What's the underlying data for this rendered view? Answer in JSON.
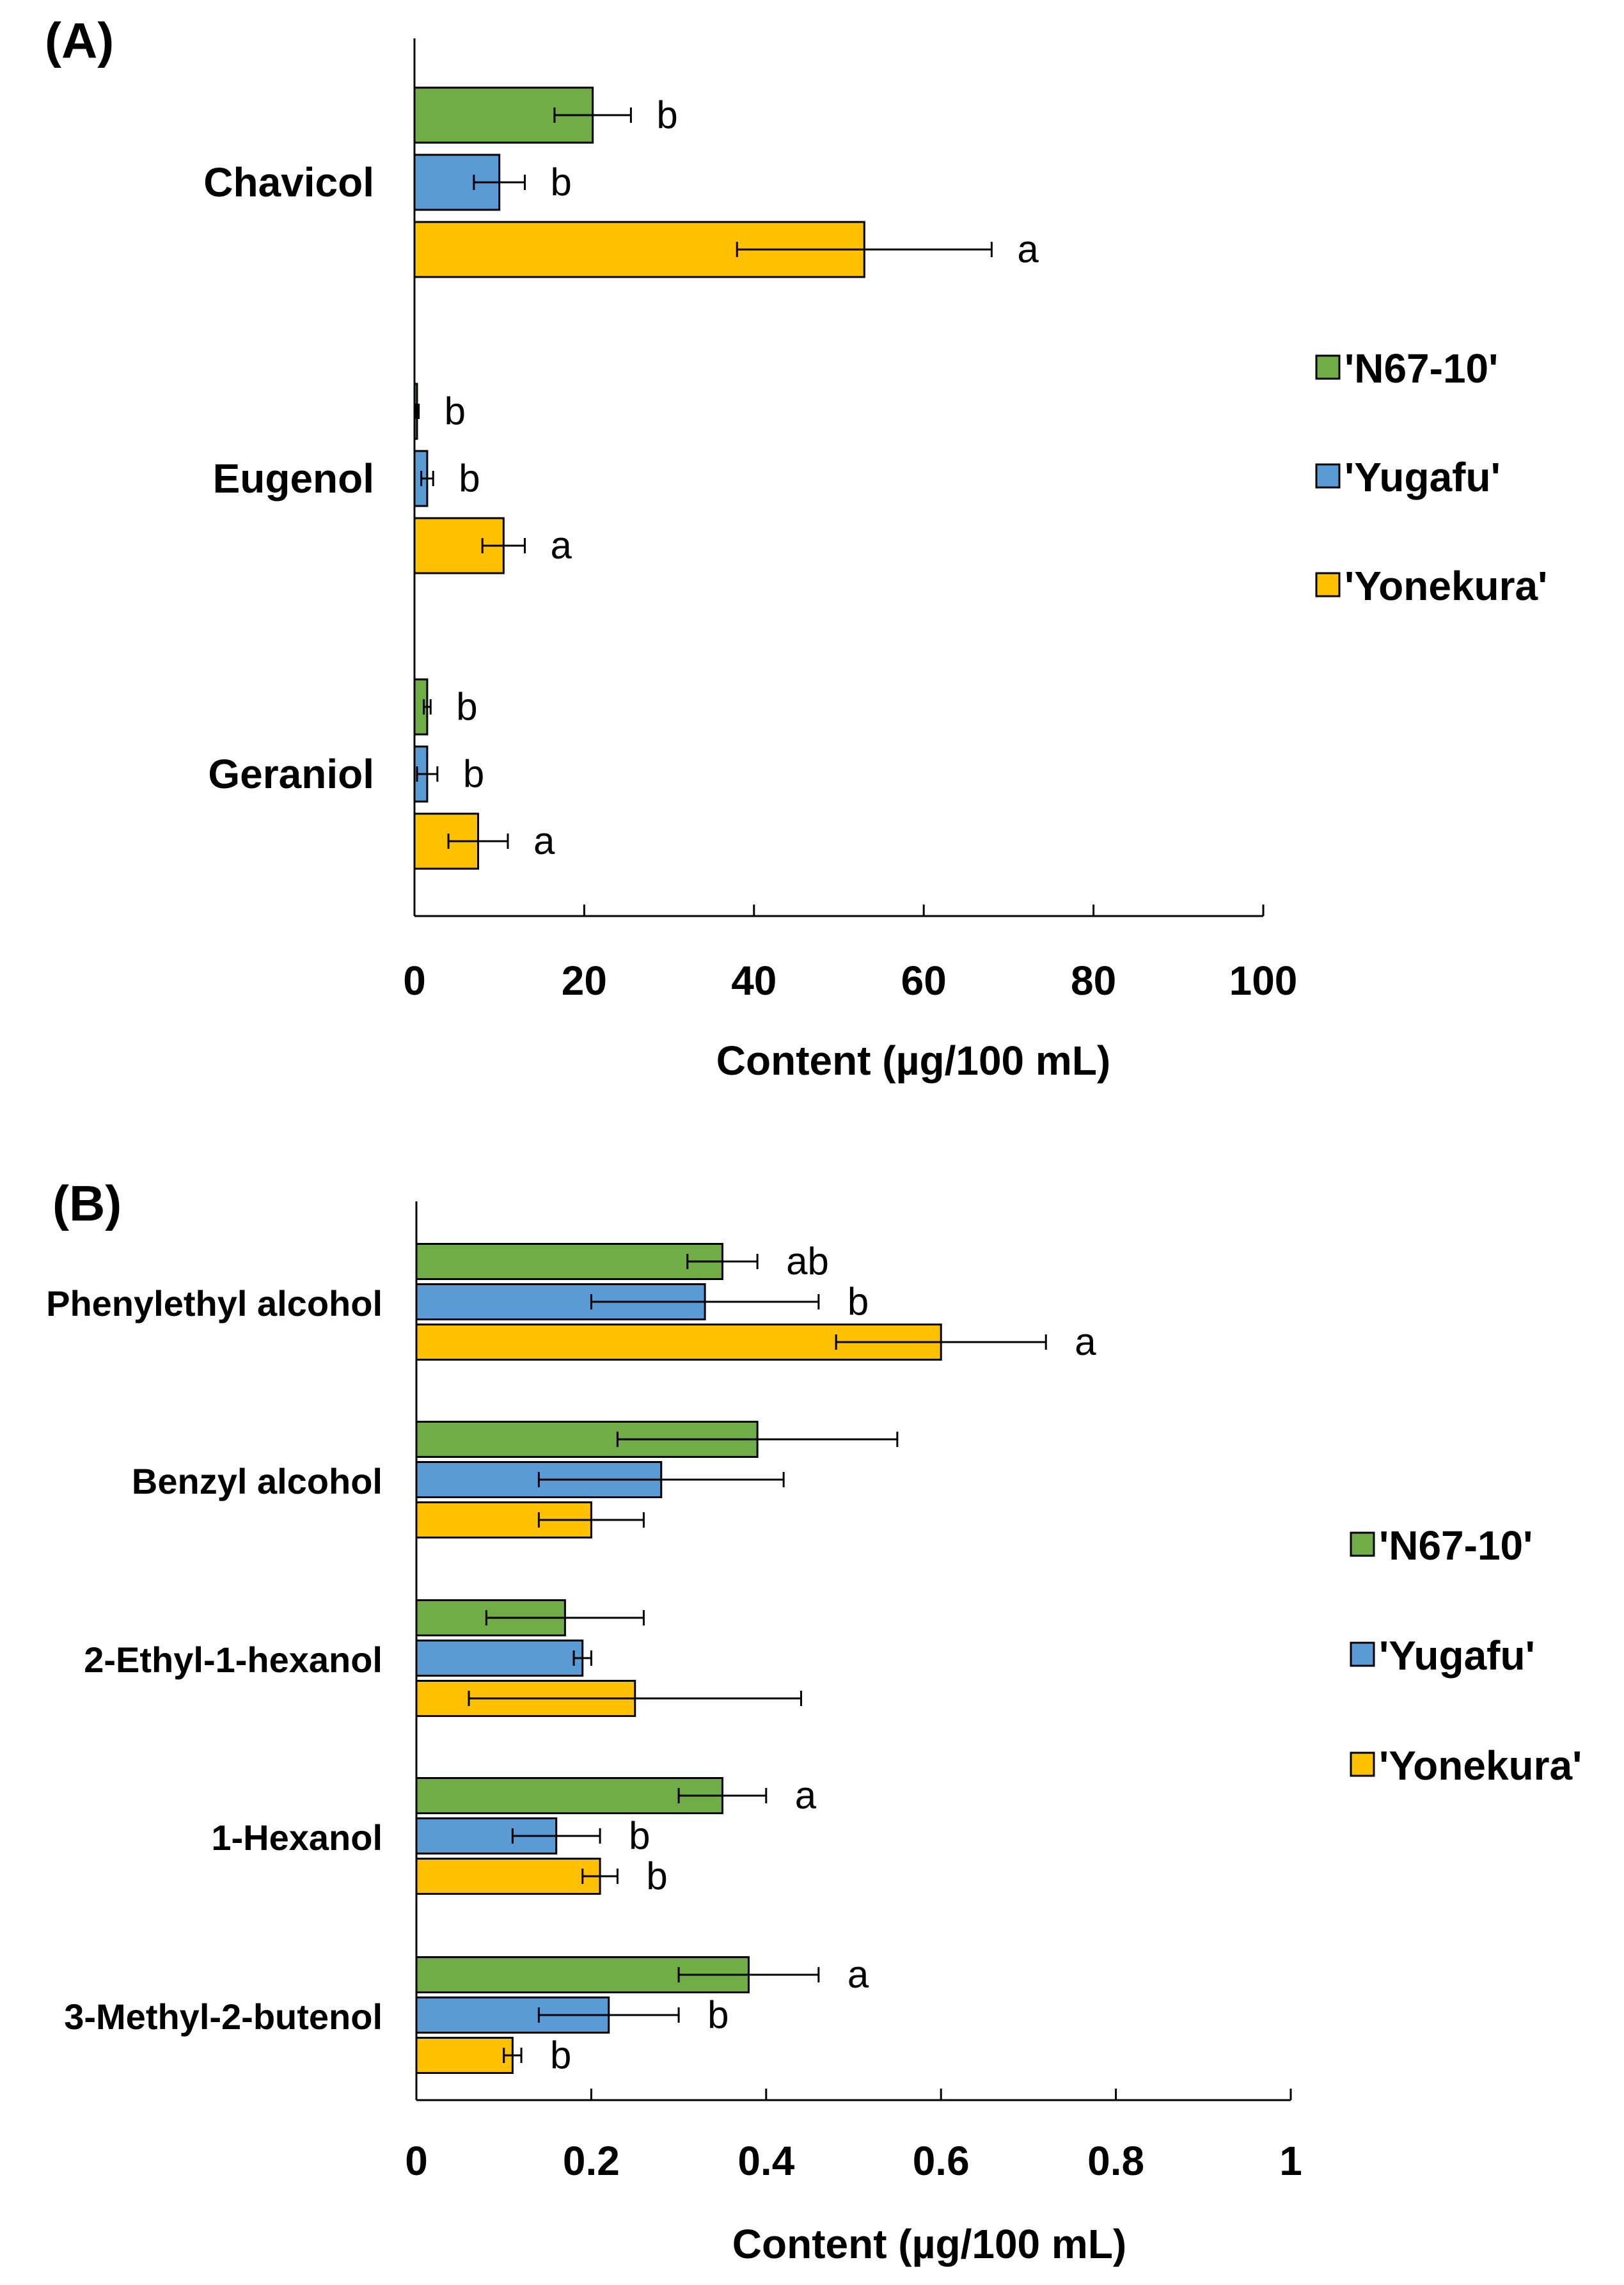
{
  "chart_data": [
    {
      "type": "bar",
      "orientation": "horizontal",
      "panel_label": "(A)",
      "categories": [
        "Chavicol",
        "Eugenol",
        "Geraniol"
      ],
      "series": [
        {
          "name": "'N67-10'",
          "color": "#70AD47",
          "values": [
            21,
            0.3,
            1.5
          ],
          "errors": [
            4.5,
            0.2,
            0.4
          ],
          "letters": [
            "b",
            "b",
            "b"
          ]
        },
        {
          "name": "'Yugafu'",
          "color": "#5B9BD5",
          "values": [
            10,
            1.5,
            1.5
          ],
          "errors": [
            3,
            0.7,
            1.2
          ],
          "letters": [
            "b",
            "b",
            "b"
          ]
        },
        {
          "name": "'Yonekura'",
          "color": "#FFC000",
          "values": [
            53,
            10.5,
            7.5
          ],
          "errors": [
            15,
            2.5,
            3.5
          ],
          "letters": [
            "a",
            "a",
            "a"
          ]
        }
      ],
      "xlim": [
        0,
        100
      ],
      "xticks": [
        "0",
        "20",
        "40",
        "60",
        "80",
        "100"
      ],
      "xlabel": "Content (µg/100 mL)",
      "legend": [
        "'N67-10'",
        "'Yugafu'",
        "'Yonekura'"
      ],
      "legend_position": "right"
    },
    {
      "type": "bar",
      "orientation": "horizontal",
      "panel_label": "(B)",
      "categories": [
        "Phenylethyl alcohol",
        "Benzyl alcohol",
        "2-Ethyl-1-hexanol",
        "1-Hexanol",
        "3-Methyl-2-butenol"
      ],
      "series": [
        {
          "name": "'N67-10'",
          "color": "#70AD47",
          "values": [
            0.35,
            0.39,
            0.17,
            0.35,
            0.38
          ],
          "errors": [
            0.04,
            0.16,
            0.09,
            0.05,
            0.08
          ],
          "letters": [
            "ab",
            "",
            "",
            "a",
            "a"
          ]
        },
        {
          "name": "'Yugafu'",
          "color": "#5B9BD5",
          "values": [
            0.33,
            0.28,
            0.19,
            0.16,
            0.22
          ],
          "errors": [
            0.13,
            0.14,
            0.01,
            0.05,
            0.08
          ],
          "letters": [
            "b",
            "",
            "",
            "b",
            "b"
          ]
        },
        {
          "name": "'Yonekura'",
          "color": "#FFC000",
          "values": [
            0.6,
            0.2,
            0.25,
            0.21,
            0.11
          ],
          "errors": [
            0.12,
            0.06,
            0.19,
            0.02,
            0.01
          ],
          "letters": [
            "a",
            "",
            "",
            "b",
            "b"
          ]
        }
      ],
      "xlim": [
        0,
        1
      ],
      "xticks": [
        "0",
        "0.2",
        "0.4",
        "0.6",
        "0.8",
        "1"
      ],
      "xlabel": "Content (µg/100 mL)",
      "legend": [
        "'N67-10'",
        "'Yugafu'",
        "'Yonekura'"
      ],
      "legend_position": "right"
    }
  ]
}
